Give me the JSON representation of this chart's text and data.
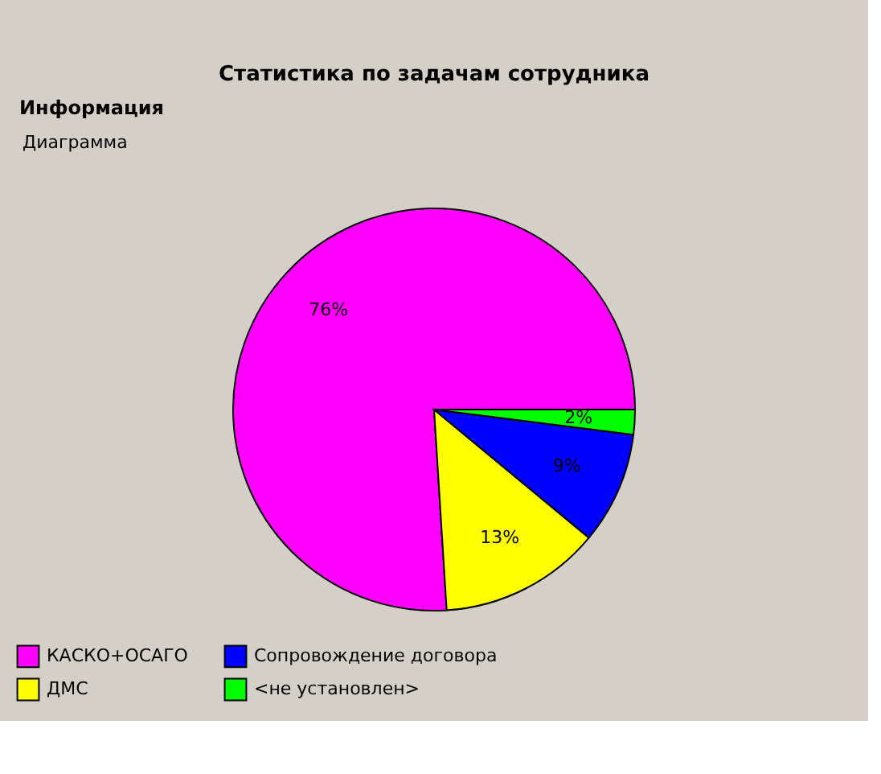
{
  "chart_data": {
    "type": "pie",
    "title": "Статистика по задачам сотрудника",
    "annotations": [
      "Информация",
      "Диаграмма"
    ],
    "categories": [
      "КАСКО+ОСАГО",
      "ДМС",
      "Сопровождение договора",
      "<не установлен>"
    ],
    "values": [
      76,
      13,
      9,
      2
    ],
    "colors": [
      "#ff00ff",
      "#ffff00",
      "#0000ff",
      "#00ff00"
    ],
    "value_labels": [
      "76%",
      "13%",
      "9%",
      "2%"
    ],
    "legend": "bottom"
  }
}
